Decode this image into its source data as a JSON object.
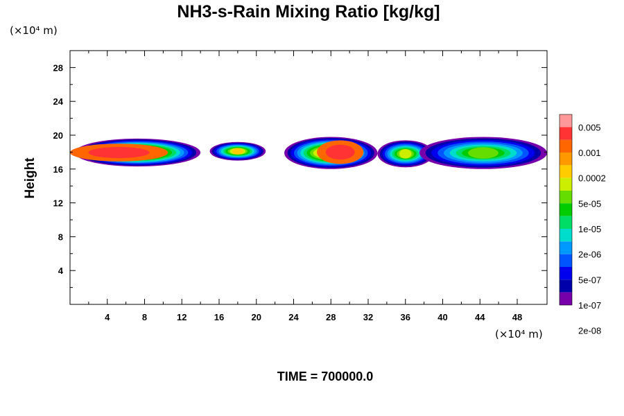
{
  "chart_data": {
    "type": "heatmap",
    "title": "NH3-s-Rain Mixing Ratio [kg/kg]",
    "ylabel": "Height",
    "x_unit": "(×10⁴ m)",
    "y_unit": "(×10⁴ m)",
    "xlim": [
      0,
      51.2
    ],
    "ylim": [
      0,
      30
    ],
    "x_ticks": [
      "4",
      "8",
      "12",
      "16",
      "20",
      "24",
      "28",
      "32",
      "36",
      "40",
      "44",
      "48"
    ],
    "y_ticks": [
      "4",
      "8",
      "12",
      "16",
      "20",
      "24",
      "28"
    ],
    "footer": "TIME = 700000.0",
    "colorbar": {
      "colors": [
        "#ff9999",
        "#ff3333",
        "#ff6600",
        "#ff9900",
        "#ffcc00",
        "#ccee00",
        "#66dd00",
        "#00cc00",
        "#00dd66",
        "#00ddcc",
        "#0099ff",
        "#0055ff",
        "#0000ee",
        "#0000aa",
        "#7700aa"
      ],
      "labels": [
        "0.005",
        "0.001",
        "0.0002",
        "5e-05",
        "1e-05",
        "2e-06",
        "5e-07",
        "1e-07",
        "2e-08"
      ]
    },
    "layer_extent": {
      "x_range": [
        0,
        51.2
      ],
      "y_range": [
        16,
        20
      ]
    },
    "blobs": [
      {
        "x": [
          0.5,
          14
        ],
        "y": [
          16.3,
          19.6
        ],
        "level": 14,
        "core": [
          0,
          10.5,
          16.9,
          19.0
        ]
      },
      {
        "x": [
          15,
          21
        ],
        "y": [
          17.0,
          19.2
        ],
        "level": 11
      },
      {
        "x": [
          23,
          33
        ],
        "y": [
          16.0,
          19.8
        ],
        "level": 13,
        "core": [
          26.5,
          31.5,
          16.6,
          19.4
        ]
      },
      {
        "x": [
          33,
          39
        ],
        "y": [
          16.2,
          19.4
        ],
        "level": 10
      },
      {
        "x": [
          37.5,
          51.2
        ],
        "y": [
          16.0,
          19.8
        ],
        "level": 9
      }
    ]
  }
}
